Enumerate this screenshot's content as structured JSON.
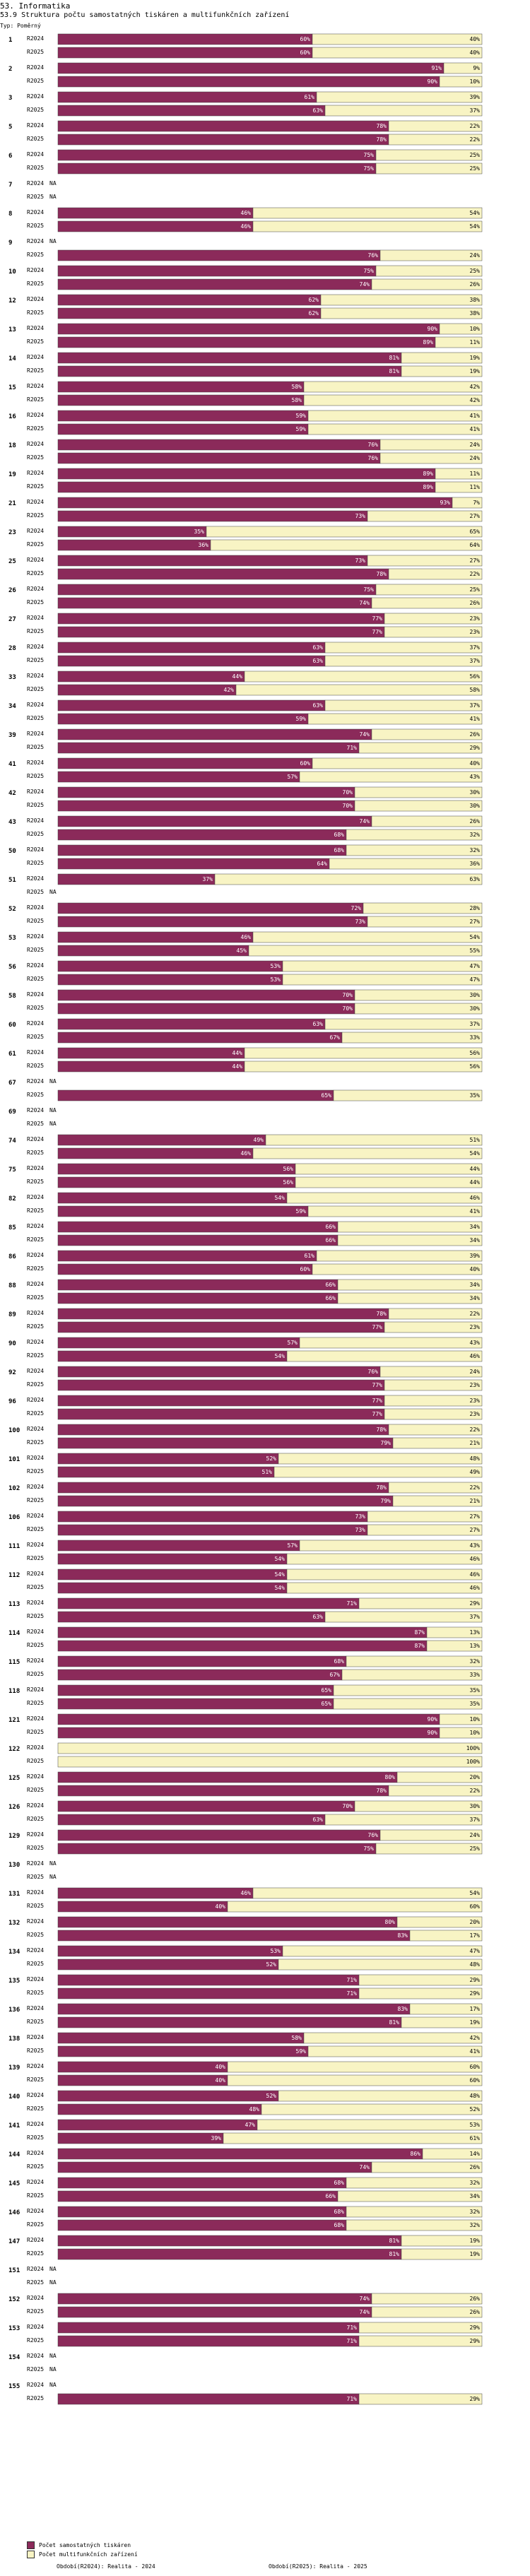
{
  "header": {
    "title": "53. Informatika",
    "subtitle": "53.9 Struktura počtu samostatných tiskáren a multifunkčních zařízení",
    "type_label": "Typ: Poměrný"
  },
  "legend": {
    "series1": "Počet samostatných tiskáren",
    "series2": "Počet multifunkčních zařízení",
    "color1": "#8b2a5a",
    "color2": "#f8f4c4"
  },
  "footer": {
    "left": "Období(R2024): Realita - 2024",
    "right": "Období(R2025): Realita - 2025"
  },
  "chart_data": {
    "type": "bar",
    "orientation": "horizontal",
    "stacked_percent": true,
    "series": [
      {
        "name": "Počet samostatných tiskáren"
      },
      {
        "name": "Počet multifunkčních zařízení"
      }
    ],
    "groups": [
      {
        "id": "1",
        "rows": [
          [
            "R2024",
            60,
            40
          ],
          [
            "R2025",
            60,
            40
          ]
        ]
      },
      {
        "id": "2",
        "rows": [
          [
            "R2024",
            91,
            9
          ],
          [
            "R2025",
            90,
            10
          ]
        ]
      },
      {
        "id": "3",
        "rows": [
          [
            "R2024",
            61,
            39
          ],
          [
            "R2025",
            63,
            37
          ]
        ]
      },
      {
        "id": "5",
        "rows": [
          [
            "R2024",
            78,
            22
          ],
          [
            "R2025",
            78,
            22
          ]
        ]
      },
      {
        "id": "6",
        "rows": [
          [
            "R2024",
            75,
            25
          ],
          [
            "R2025",
            75,
            25
          ]
        ]
      },
      {
        "id": "7",
        "rows": [
          [
            "R2024",
            null,
            null
          ],
          [
            "R2025",
            null,
            null
          ]
        ]
      },
      {
        "id": "8",
        "rows": [
          [
            "R2024",
            46,
            54
          ],
          [
            "R2025",
            46,
            54
          ]
        ]
      },
      {
        "id": "9",
        "rows": [
          [
            "R2024",
            null,
            null
          ],
          [
            "R2025",
            76,
            24
          ]
        ]
      },
      {
        "id": "10",
        "rows": [
          [
            "R2024",
            75,
            25
          ],
          [
            "R2025",
            74,
            26
          ]
        ]
      },
      {
        "id": "12",
        "rows": [
          [
            "R2024",
            62,
            38
          ],
          [
            "R2025",
            62,
            38
          ]
        ]
      },
      {
        "id": "13",
        "rows": [
          [
            "R2024",
            90,
            10
          ],
          [
            "R2025",
            89,
            11
          ]
        ]
      },
      {
        "id": "14",
        "rows": [
          [
            "R2024",
            81,
            19
          ],
          [
            "R2025",
            81,
            19
          ]
        ]
      },
      {
        "id": "15",
        "rows": [
          [
            "R2024",
            58,
            42
          ],
          [
            "R2025",
            58,
            42
          ]
        ]
      },
      {
        "id": "16",
        "rows": [
          [
            "R2024",
            59,
            41
          ],
          [
            "R2025",
            59,
            41
          ]
        ]
      },
      {
        "id": "18",
        "rows": [
          [
            "R2024",
            76,
            24
          ],
          [
            "R2025",
            76,
            24
          ]
        ]
      },
      {
        "id": "19",
        "rows": [
          [
            "R2024",
            89,
            11
          ],
          [
            "R2025",
            89,
            11
          ]
        ]
      },
      {
        "id": "21",
        "rows": [
          [
            "R2024",
            93,
            7
          ],
          [
            "R2025",
            73,
            27
          ]
        ]
      },
      {
        "id": "23",
        "rows": [
          [
            "R2024",
            35,
            65
          ],
          [
            "R2025",
            36,
            64
          ]
        ]
      },
      {
        "id": "25",
        "rows": [
          [
            "R2024",
            73,
            27
          ],
          [
            "R2025",
            78,
            22
          ]
        ]
      },
      {
        "id": "26",
        "rows": [
          [
            "R2024",
            75,
            25
          ],
          [
            "R2025",
            74,
            26
          ]
        ]
      },
      {
        "id": "27",
        "rows": [
          [
            "R2024",
            77,
            23
          ],
          [
            "R2025",
            77,
            23
          ]
        ]
      },
      {
        "id": "28",
        "rows": [
          [
            "R2024",
            63,
            37
          ],
          [
            "R2025",
            63,
            37
          ]
        ]
      },
      {
        "id": "33",
        "rows": [
          [
            "R2024",
            44,
            56
          ],
          [
            "R2025",
            42,
            58
          ]
        ]
      },
      {
        "id": "34",
        "rows": [
          [
            "R2024",
            63,
            37
          ],
          [
            "R2025",
            59,
            41
          ]
        ]
      },
      {
        "id": "39",
        "rows": [
          [
            "R2024",
            74,
            26
          ],
          [
            "R2025",
            71,
            29
          ]
        ]
      },
      {
        "id": "41",
        "rows": [
          [
            "R2024",
            60,
            40
          ],
          [
            "R2025",
            57,
            43
          ]
        ]
      },
      {
        "id": "42",
        "rows": [
          [
            "R2024",
            70,
            30
          ],
          [
            "R2025",
            70,
            30
          ]
        ]
      },
      {
        "id": "43",
        "rows": [
          [
            "R2024",
            74,
            26
          ],
          [
            "R2025",
            68,
            32
          ]
        ]
      },
      {
        "id": "50",
        "rows": [
          [
            "R2024",
            68,
            32
          ],
          [
            "R2025",
            64,
            36
          ]
        ]
      },
      {
        "id": "51",
        "rows": [
          [
            "R2024",
            37,
            63
          ],
          [
            "R2025",
            null,
            null
          ]
        ]
      },
      {
        "id": "52",
        "rows": [
          [
            "R2024",
            72,
            28
          ],
          [
            "R2025",
            73,
            27
          ]
        ]
      },
      {
        "id": "53",
        "rows": [
          [
            "R2024",
            46,
            54
          ],
          [
            "R2025",
            45,
            55
          ]
        ]
      },
      {
        "id": "56",
        "rows": [
          [
            "R2024",
            53,
            47
          ],
          [
            "R2025",
            53,
            47
          ]
        ]
      },
      {
        "id": "58",
        "rows": [
          [
            "R2024",
            70,
            30
          ],
          [
            "R2025",
            70,
            30
          ]
        ]
      },
      {
        "id": "60",
        "rows": [
          [
            "R2024",
            63,
            37
          ],
          [
            "R2025",
            67,
            33
          ]
        ]
      },
      {
        "id": "61",
        "rows": [
          [
            "R2024",
            44,
            56
          ],
          [
            "R2025",
            44,
            56
          ]
        ]
      },
      {
        "id": "67",
        "rows": [
          [
            "R2024",
            null,
            null
          ],
          [
            "R2025",
            65,
            35
          ]
        ]
      },
      {
        "id": "69",
        "rows": [
          [
            "R2024",
            null,
            null
          ],
          [
            "R2025",
            null,
            null
          ]
        ]
      },
      {
        "id": "74",
        "rows": [
          [
            "R2024",
            49,
            51
          ],
          [
            "R2025",
            46,
            54
          ]
        ]
      },
      {
        "id": "75",
        "rows": [
          [
            "R2024",
            56,
            44
          ],
          [
            "R2025",
            56,
            44
          ]
        ]
      },
      {
        "id": "82",
        "rows": [
          [
            "R2024",
            54,
            46
          ],
          [
            "R2025",
            59,
            41
          ]
        ]
      },
      {
        "id": "85",
        "rows": [
          [
            "R2024",
            66,
            34
          ],
          [
            "R2025",
            66,
            34
          ]
        ]
      },
      {
        "id": "86",
        "rows": [
          [
            "R2024",
            61,
            39
          ],
          [
            "R2025",
            60,
            40
          ]
        ]
      },
      {
        "id": "88",
        "rows": [
          [
            "R2024",
            66,
            34
          ],
          [
            "R2025",
            66,
            34
          ]
        ]
      },
      {
        "id": "89",
        "rows": [
          [
            "R2024",
            78,
            22
          ],
          [
            "R2025",
            77,
            23
          ]
        ]
      },
      {
        "id": "90",
        "rows": [
          [
            "R2024",
            57,
            43
          ],
          [
            "R2025",
            54,
            46
          ]
        ]
      },
      {
        "id": "92",
        "rows": [
          [
            "R2024",
            76,
            24
          ],
          [
            "R2025",
            77,
            23
          ]
        ]
      },
      {
        "id": "96",
        "rows": [
          [
            "R2024",
            77,
            23
          ],
          [
            "R2025",
            77,
            23
          ]
        ]
      },
      {
        "id": "100",
        "rows": [
          [
            "R2024",
            78,
            22
          ],
          [
            "R2025",
            79,
            21
          ]
        ]
      },
      {
        "id": "101",
        "rows": [
          [
            "R2024",
            52,
            48
          ],
          [
            "R2025",
            51,
            49
          ]
        ]
      },
      {
        "id": "102",
        "rows": [
          [
            "R2024",
            78,
            22
          ],
          [
            "R2025",
            79,
            21
          ]
        ]
      },
      {
        "id": "106",
        "rows": [
          [
            "R2024",
            73,
            27
          ],
          [
            "R2025",
            73,
            27
          ]
        ]
      },
      {
        "id": "111",
        "rows": [
          [
            "R2024",
            57,
            43
          ],
          [
            "R2025",
            54,
            46
          ]
        ]
      },
      {
        "id": "112",
        "rows": [
          [
            "R2024",
            54,
            46
          ],
          [
            "R2025",
            54,
            46
          ]
        ]
      },
      {
        "id": "113",
        "rows": [
          [
            "R2024",
            71,
            29
          ],
          [
            "R2025",
            63,
            37
          ]
        ]
      },
      {
        "id": "114",
        "rows": [
          [
            "R2024",
            87,
            13
          ],
          [
            "R2025",
            87,
            13
          ]
        ]
      },
      {
        "id": "115",
        "rows": [
          [
            "R2024",
            68,
            32
          ],
          [
            "R2025",
            67,
            33
          ]
        ]
      },
      {
        "id": "118",
        "rows": [
          [
            "R2024",
            65,
            35
          ],
          [
            "R2025",
            65,
            35
          ]
        ]
      },
      {
        "id": "121",
        "rows": [
          [
            "R2024",
            90,
            10
          ],
          [
            "R2025",
            90,
            10
          ]
        ]
      },
      {
        "id": "122",
        "rows": [
          [
            "R2024",
            0,
            100
          ],
          [
            "R2025",
            0,
            100
          ]
        ]
      },
      {
        "id": "125",
        "rows": [
          [
            "R2024",
            80,
            20
          ],
          [
            "R2025",
            78,
            22
          ]
        ]
      },
      {
        "id": "126",
        "rows": [
          [
            "R2024",
            70,
            30
          ],
          [
            "R2025",
            63,
            37
          ]
        ]
      },
      {
        "id": "129",
        "rows": [
          [
            "R2024",
            76,
            24
          ],
          [
            "R2025",
            75,
            25
          ]
        ]
      },
      {
        "id": "130",
        "rows": [
          [
            "R2024",
            null,
            null
          ],
          [
            "R2025",
            null,
            null
          ]
        ]
      },
      {
        "id": "131",
        "rows": [
          [
            "R2024",
            46,
            54
          ],
          [
            "R2025",
            40,
            60
          ]
        ]
      },
      {
        "id": "132",
        "rows": [
          [
            "R2024",
            80,
            20
          ],
          [
            "R2025",
            83,
            17
          ]
        ]
      },
      {
        "id": "134",
        "rows": [
          [
            "R2024",
            53,
            47
          ],
          [
            "R2025",
            52,
            48
          ]
        ]
      },
      {
        "id": "135",
        "rows": [
          [
            "R2024",
            71,
            29
          ],
          [
            "R2025",
            71,
            29
          ]
        ]
      },
      {
        "id": "136",
        "rows": [
          [
            "R2024",
            83,
            17
          ],
          [
            "R2025",
            81,
            19
          ]
        ]
      },
      {
        "id": "138",
        "rows": [
          [
            "R2024",
            58,
            42
          ],
          [
            "R2025",
            59,
            41
          ]
        ]
      },
      {
        "id": "139",
        "rows": [
          [
            "R2024",
            40,
            60
          ],
          [
            "R2025",
            40,
            60
          ]
        ]
      },
      {
        "id": "140",
        "rows": [
          [
            "R2024",
            52,
            48
          ],
          [
            "R2025",
            48,
            52
          ]
        ]
      },
      {
        "id": "141",
        "rows": [
          [
            "R2024",
            47,
            53
          ],
          [
            "R2025",
            39,
            61
          ]
        ]
      },
      {
        "id": "144",
        "rows": [
          [
            "R2024",
            86,
            14
          ],
          [
            "R2025",
            74,
            26
          ]
        ]
      },
      {
        "id": "145",
        "rows": [
          [
            "R2024",
            68,
            32
          ],
          [
            "R2025",
            66,
            34
          ]
        ]
      },
      {
        "id": "146",
        "rows": [
          [
            "R2024",
            68,
            32
          ],
          [
            "R2025",
            68,
            32
          ]
        ]
      },
      {
        "id": "147",
        "rows": [
          [
            "R2024",
            81,
            19
          ],
          [
            "R2025",
            81,
            19
          ]
        ]
      },
      {
        "id": "151",
        "rows": [
          [
            "R2024",
            null,
            null
          ],
          [
            "R2025",
            null,
            null
          ]
        ]
      },
      {
        "id": "152",
        "rows": [
          [
            "R2024",
            74,
            26
          ],
          [
            "R2025",
            74,
            26
          ]
        ]
      },
      {
        "id": "153",
        "rows": [
          [
            "R2024",
            71,
            29
          ],
          [
            "R2025",
            71,
            29
          ]
        ]
      },
      {
        "id": "154",
        "rows": [
          [
            "R2024",
            null,
            null
          ],
          [
            "R2025",
            null,
            null
          ]
        ]
      },
      {
        "id": "155",
        "rows": [
          [
            "R2024",
            null,
            null
          ],
          [
            "R2025",
            71,
            29
          ]
        ]
      }
    ],
    "na_label": "NA",
    "percent_suffix": "%"
  }
}
